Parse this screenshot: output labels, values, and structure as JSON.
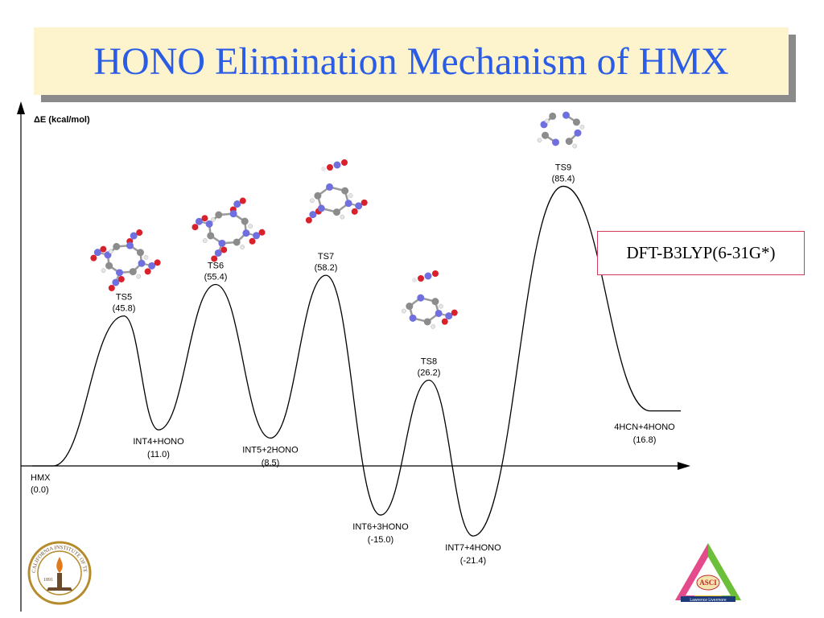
{
  "title": "HONO Elimination Mechanism of HMX",
  "y_axis_label": "ΔE (kcal/mol)",
  "method": "DFT-B3LYP(6-31G*)",
  "states": [
    {
      "id": "hmx",
      "name": "HMX",
      "energy": "(0.0)",
      "value": 0.0
    },
    {
      "id": "ts5",
      "name": "TS5",
      "energy": "(45.8)",
      "value": 45.8
    },
    {
      "id": "int4",
      "name": "INT4+HONO",
      "energy": "(11.0)",
      "value": 11.0
    },
    {
      "id": "ts6",
      "name": "TS6",
      "energy": "(55.4)",
      "value": 55.4
    },
    {
      "id": "int5",
      "name": "INT5+2HONO",
      "energy": "(8.5)",
      "value": 8.5
    },
    {
      "id": "ts7",
      "name": "TS7",
      "energy": "(58.2)",
      "value": 58.2
    },
    {
      "id": "int6",
      "name": "INT6+3HONO",
      "energy": "(-15.0)",
      "value": -15.0
    },
    {
      "id": "ts8",
      "name": "TS8",
      "energy": "(26.2)",
      "value": 26.2
    },
    {
      "id": "int7",
      "name": "INT7+4HONO",
      "energy": "(-21.4)",
      "value": -21.4
    },
    {
      "id": "ts9",
      "name": "TS9",
      "energy": "(85.4)",
      "value": 85.4
    },
    {
      "id": "products",
      "name": "4HCN+4HONO",
      "energy": "(16.8)",
      "value": 16.8
    }
  ],
  "logos": {
    "caltech_seal": "CALIFORNIA INSTITUTE OF TECHNOLOGY 1891",
    "asci_emblem": "ASCI Accelerated Strategic Computing Initiative Lawrence Livermore"
  },
  "colors": {
    "title_text": "#2b5ce6",
    "title_bg": "#fdf3cc",
    "method_border": "#d23a5a",
    "nitrogen_atom": "#6f6fe0",
    "oxygen_atom": "#d8212a",
    "carbon_atom": "#8c8c8c",
    "hydrogen_atom": "#e6e6e6"
  },
  "icons": {
    "caltech": "caltech-seal-logo",
    "asci": "asci-triangle-logo",
    "molecules": "ball-and-stick-molecule-icon"
  }
}
